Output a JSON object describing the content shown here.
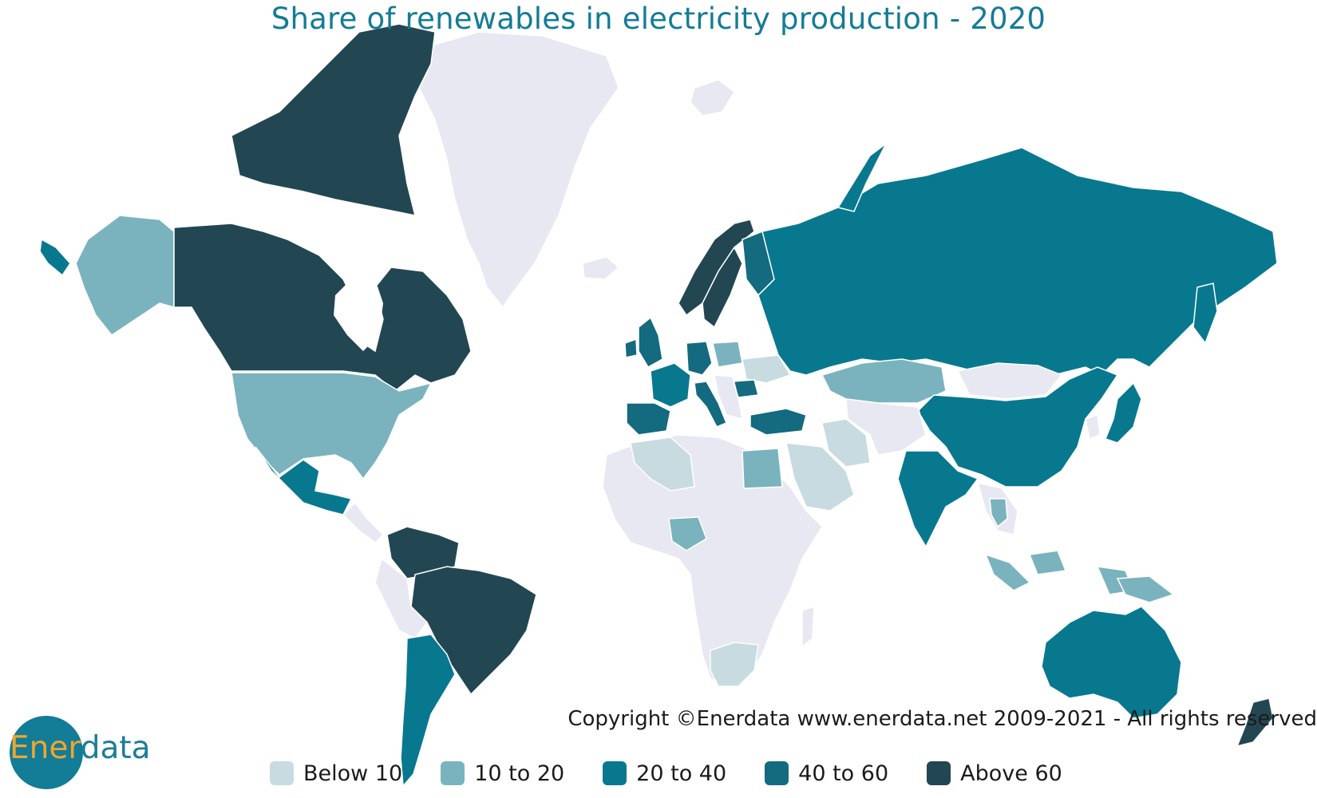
{
  "title": "Share of renewables in electricity production - 2020",
  "copyright": "Copyright ©Enerdata www.enerdata.net 2009-2021 - All rights reserved",
  "logo": {
    "part1": "Ener",
    "part2": "data",
    "circle_color": "#137c96"
  },
  "colors": {
    "no_data": "#e7e8f2",
    "below_10": "#c7dbe0",
    "c10_20": "#7ab3be",
    "c20_40": "#08788f",
    "c40_60": "#146a7f",
    "above_60": "#224753"
  },
  "legend": [
    {
      "label": "Below 10",
      "color": "#c7dbe0"
    },
    {
      "label": "10 to 20",
      "color": "#7ab3be"
    },
    {
      "label": "20 to 40",
      "color": "#08788f"
    },
    {
      "label": "40 to 60",
      "color": "#146a7f"
    },
    {
      "label": "Above 60",
      "color": "#224753"
    }
  ],
  "regions": [
    {
      "id": "canada",
      "category": "above_60"
    },
    {
      "id": "brazil",
      "category": "above_60"
    },
    {
      "id": "venezuela-colombia",
      "category": "above_60"
    },
    {
      "id": "norway",
      "category": "above_60"
    },
    {
      "id": "sweden",
      "category": "above_60"
    },
    {
      "id": "new-zealand",
      "category": "above_60"
    },
    {
      "id": "russia",
      "category": "c20_40"
    },
    {
      "id": "china",
      "category": "c20_40"
    },
    {
      "id": "india",
      "category": "c20_40"
    },
    {
      "id": "australia",
      "category": "c20_40"
    },
    {
      "id": "mexico",
      "category": "c20_40"
    },
    {
      "id": "argentina-chile",
      "category": "c20_40"
    },
    {
      "id": "turkey",
      "category": "c40_60"
    },
    {
      "id": "uk",
      "category": "c40_60"
    },
    {
      "id": "france",
      "category": "c20_40"
    },
    {
      "id": "iberia",
      "category": "c40_60"
    },
    {
      "id": "germany",
      "category": "c40_60"
    },
    {
      "id": "italy",
      "category": "c40_60"
    },
    {
      "id": "romania",
      "category": "c40_60"
    },
    {
      "id": "japan",
      "category": "c20_40"
    },
    {
      "id": "finland",
      "category": "c40_60"
    },
    {
      "id": "usa",
      "category": "c10_20"
    },
    {
      "id": "alaska",
      "category": "c10_20"
    },
    {
      "id": "kazakhstan",
      "category": "c10_20"
    },
    {
      "id": "poland",
      "category": "c10_20"
    },
    {
      "id": "egypt",
      "category": "c10_20"
    },
    {
      "id": "nigeria",
      "category": "c10_20"
    },
    {
      "id": "thailand",
      "category": "c10_20"
    },
    {
      "id": "malaysia-indonesia",
      "category": "c10_20"
    },
    {
      "id": "iran",
      "category": "below_10"
    },
    {
      "id": "saudi-arabia",
      "category": "below_10"
    },
    {
      "id": "algeria",
      "category": "below_10"
    },
    {
      "id": "south-africa",
      "category": "below_10"
    },
    {
      "id": "ukraine",
      "category": "below_10"
    },
    {
      "id": "mongolia",
      "category": "no_data"
    },
    {
      "id": "greenland",
      "category": "no_data"
    },
    {
      "id": "africa",
      "category": "no_data"
    }
  ]
}
